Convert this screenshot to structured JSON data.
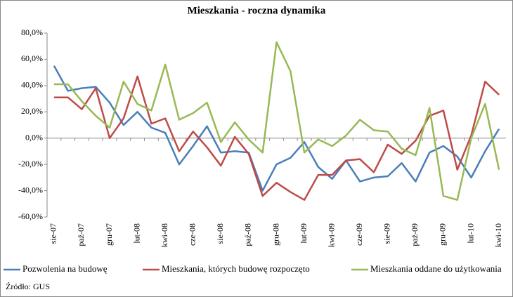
{
  "chart_data": {
    "type": "line",
    "title": "Mieszkania - roczna dynamika",
    "categories": [
      "sie-07",
      null,
      "paź-07",
      null,
      "gru-07",
      null,
      "lut-08",
      null,
      "kwi-08",
      null,
      "cze-08",
      null,
      "sie-08",
      null,
      "paź-08",
      null,
      "gru-08",
      null,
      "lut-09",
      null,
      "kwi-09",
      null,
      "cze-09",
      null,
      "sie-09",
      null,
      "paź-09",
      null,
      "gru-09",
      null,
      "lut-10",
      null,
      "kwi-10"
    ],
    "series": [
      {
        "name": "Pozwolenia na budowę",
        "color": "#4a7ebb",
        "values": [
          55,
          36,
          38,
          39,
          27,
          10,
          20,
          8,
          4,
          -20,
          -6,
          9,
          -11,
          -10,
          -11,
          -40,
          -20,
          -15,
          -3,
          -22,
          -31,
          -17,
          -33,
          -30,
          -29,
          -19,
          -33,
          -11,
          -6,
          -14,
          -30,
          -10,
          7
        ]
      },
      {
        "name": "Mieszkania, których budowę rozpoczęto",
        "color": "#be4b48",
        "values": [
          31,
          31,
          22,
          38,
          0,
          15,
          47,
          11,
          15,
          -10,
          5,
          -7,
          -21,
          1,
          -12,
          -44,
          -34,
          -41,
          -47,
          -28,
          -28,
          -17,
          -16,
          -26,
          -5,
          -12,
          -2,
          17,
          21,
          -24,
          2,
          43,
          33
        ]
      },
      {
        "name": "Mieszkania oddane do użytkowania",
        "color": "#98b954",
        "values": [
          41,
          41,
          28,
          17,
          8,
          43,
          26,
          21,
          56,
          14,
          19,
          27,
          -3,
          12,
          -1,
          -11,
          73,
          51,
          -11,
          -1,
          -6,
          2,
          14,
          6,
          5,
          -8,
          -13,
          23,
          -44,
          -47,
          0,
          26,
          -24
        ]
      }
    ],
    "ylim": [
      -60,
      80
    ],
    "yticks": [
      {
        "value": -60,
        "label": "-60,0%"
      },
      {
        "value": -40,
        "label": "-40,0%"
      },
      {
        "value": -20,
        "label": "-20,0%"
      },
      {
        "value": 0,
        "label": "0,0%"
      },
      {
        "value": 20,
        "label": "20,0%"
      },
      {
        "value": 40,
        "label": "40,0%"
      },
      {
        "value": 60,
        "label": "60,0%"
      },
      {
        "value": 80,
        "label": "80,0%"
      }
    ],
    "legend": "bottom",
    "source": "Źródło: GUS"
  }
}
